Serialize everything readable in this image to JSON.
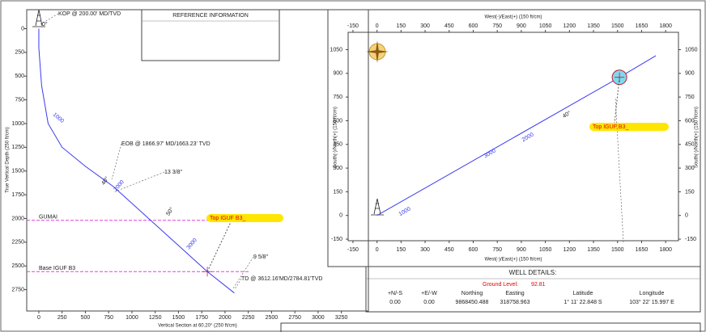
{
  "chart_data": [
    {
      "type": "line",
      "x_label": "Vertical Section at 60.20° (250 ft/cm)",
      "y_label": "True Vertical Depth (250 ft/cm)",
      "xlim": [
        -130,
        3540
      ],
      "ylim": [
        -200,
        2975
      ],
      "y_inverted": true,
      "xticks": [
        0,
        250,
        500,
        750,
        1000,
        1250,
        1500,
        1750,
        2000,
        2250,
        2500,
        2750,
        3000,
        3250
      ],
      "yticks": [
        0,
        250,
        500,
        750,
        1000,
        1250,
        1500,
        1750,
        2000,
        2250,
        2500,
        2750
      ],
      "series": [
        {
          "color": "#3a3af0",
          "x": [
            0,
            0,
            30,
            100,
            250,
            500,
            800,
            1810,
            2100
          ],
          "values": [
            0,
            200,
            600,
            1000,
            1250,
            1450,
            1663,
            2560,
            2785
          ]
        }
      ],
      "formations": [
        {
          "name": "GUMAI",
          "value": 2020,
          "color": "#e040e0"
        },
        {
          "name": "Base IGUF B3",
          "value": 2560,
          "color": "#e040e0"
        }
      ],
      "target": {
        "label": "Top IGUF B3_",
        "x": 1810,
        "value": 2560
      },
      "annotations": [
        "KOP @ 200.00' MD/TVD",
        "0°",
        "EOB @ 1866.97' MD/1663.23' TVD",
        "13 3/8\"",
        "40°",
        "1000",
        "2000",
        "3000",
        "50°",
        "9 5/8\"",
        "TD @ 3612.16'MD/2784.81'TVD"
      ]
    },
    {
      "type": "line",
      "x_label": "West(-)/East(+) (150 ft/cm)",
      "y_label": "South(-)/North(+) (150 ft/cm)",
      "xlim": [
        -180,
        1880
      ],
      "ylim": [
        -160,
        1160
      ],
      "xticks": [
        -150,
        0,
        150,
        300,
        450,
        600,
        750,
        900,
        1050,
        1200,
        1350,
        1500,
        1650,
        1800
      ],
      "yticks": [
        -150,
        0,
        150,
        300,
        450,
        600,
        750,
        900,
        1050
      ],
      "series": [
        {
          "color": "#3a3af0",
          "x": [
            0,
            1512,
            1739
          ],
          "values": [
            0,
            875,
            1012
          ]
        }
      ],
      "target": {
        "label": "Top IGUF B3_",
        "x": 1512,
        "value": 875
      },
      "annotations": [
        "1000",
        "3000",
        "2000",
        "40°"
      ]
    }
  ],
  "reference_information": {
    "title": "REFERENCE INFORMATION"
  },
  "well_details": {
    "title": "WELL DETAILS:",
    "ground_level_label": "Ground Level:",
    "ground_level": "92.81",
    "headers": [
      "+N/-S",
      "+E/-W",
      "Northing",
      "Easting",
      "Latitude",
      "Longitude"
    ],
    "row": [
      "0.00",
      "0.00",
      "9868450.488",
      "318758.963",
      "1° 11' 22.848 S",
      "103° 22' 15.997 E"
    ]
  }
}
